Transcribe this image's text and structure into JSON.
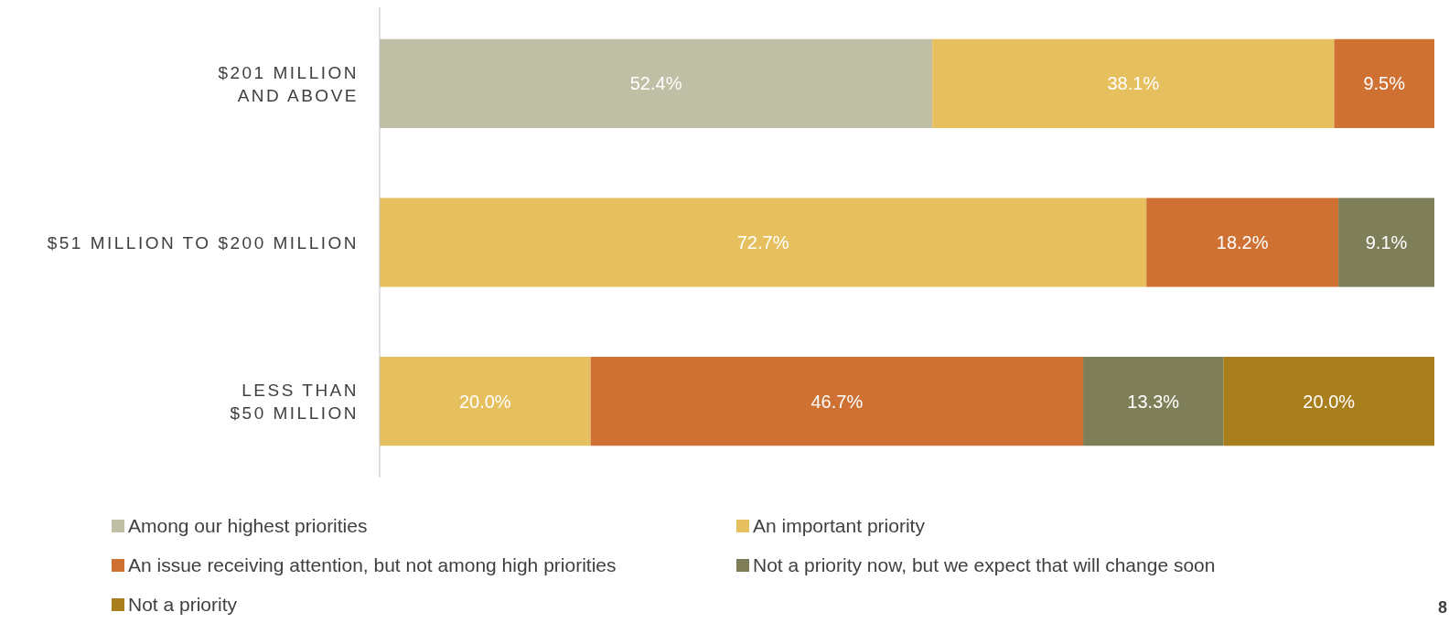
{
  "chart_data": {
    "type": "bar",
    "orientation": "horizontal",
    "stacked": true,
    "categories": [
      "$201 MILLION\nAND ABOVE",
      "$51 MILLION TO $200 MILLION",
      "LESS THAN\n$50 MILLION"
    ],
    "xlim": [
      0,
      100
    ],
    "tick_labels": "y",
    "legend": "bottom",
    "series": [
      {
        "name": "Among our highest priorities",
        "color": "#bfbfa5",
        "values": [
          52.4,
          null,
          null
        ],
        "value_labels": [
          "52.4%",
          null,
          null
        ]
      },
      {
        "name": "An important priority",
        "color": "#e6bf5f",
        "values": [
          38.1,
          72.7,
          20.0
        ],
        "value_labels": [
          "38.1%",
          "72.7%",
          "20.0%"
        ]
      },
      {
        "name": "An issue receiving attention, but not among high priorities",
        "color": "#cf7133",
        "values": [
          9.5,
          18.2,
          46.7
        ],
        "value_labels": [
          "9.5%",
          "18.2%",
          "46.7%"
        ]
      },
      {
        "name": "Not a priority now, but we expect that will change soon",
        "color": "#7e7e58",
        "values": [
          null,
          9.1,
          13.3
        ],
        "value_labels": [
          null,
          "9.1%",
          "13.3%"
        ]
      },
      {
        "name": "Not a priority",
        "color": "#a97e1c",
        "values": [
          null,
          null,
          20.0
        ],
        "value_labels": [
          null,
          null,
          "20.0%"
        ]
      }
    ],
    "annotations": [
      "8"
    ]
  }
}
